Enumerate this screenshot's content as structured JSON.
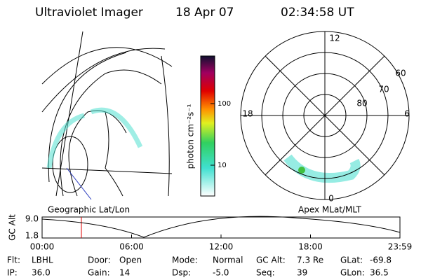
{
  "header": {
    "title": "Ultraviolet Imager",
    "date": "18 Apr 07",
    "time": "02:34:58 UT"
  },
  "colorbar": {
    "label": "photon cm⁻²s⁻¹",
    "ticks": [
      "100",
      "10"
    ]
  },
  "polar_plot": {
    "mlt_labels": [
      "12",
      "18",
      "6",
      "0"
    ],
    "lat_labels": [
      "60",
      "70",
      "80"
    ]
  },
  "time_plot": {
    "ylabel": "GC Alt",
    "yticks": [
      "9.0",
      "1.8"
    ],
    "left_label": "Geographic Lat/Lon",
    "right_label": "Apex MLat/MLT",
    "xticks": [
      "00:00",
      "06:00",
      "12:00",
      "18:00",
      "23:59"
    ]
  },
  "footer": {
    "rows": [
      [
        {
          "label": "Flt:",
          "value": "LBHL"
        },
        {
          "label": "Door:",
          "value": "Open"
        },
        {
          "label": "Mode:",
          "value": "Normal"
        },
        {
          "label": "GC Alt:",
          "value": "7.3 Re"
        },
        {
          "label": "GLat:",
          "value": "-69.8"
        }
      ],
      [
        {
          "label": "IP:",
          "value": "36.0"
        },
        {
          "label": "Gain:",
          "value": "14"
        },
        {
          "label": "Dsp:",
          "value": "-5.0"
        },
        {
          "label": "Seq:",
          "value": "39"
        },
        {
          "label": "GLon:",
          "value": "36.5"
        }
      ]
    ]
  }
}
